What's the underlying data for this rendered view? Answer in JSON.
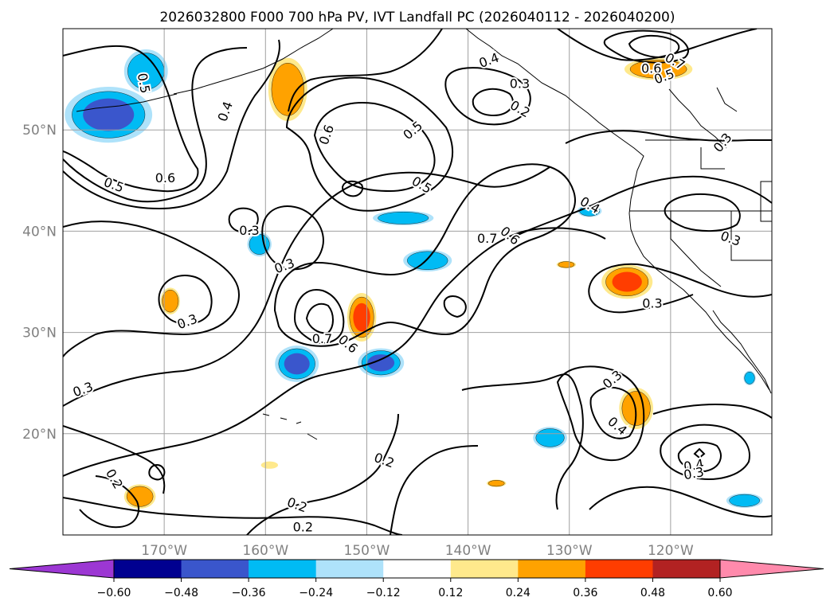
{
  "chart_data": {
    "type": "contour-map",
    "title": "2026032800 F000 700 hPa PV, IVT Landfall PC (2026040112 - 2026040200)",
    "lon_range": [
      -180,
      -110
    ],
    "lat_range": [
      10,
      60
    ],
    "lon_ticks": [
      {
        "value": -170,
        "label": "170°W"
      },
      {
        "value": -160,
        "label": "160°W"
      },
      {
        "value": -150,
        "label": "150°W"
      },
      {
        "value": -140,
        "label": "140°W"
      },
      {
        "value": -130,
        "label": "130°W"
      },
      {
        "value": -120,
        "label": "120°W"
      }
    ],
    "lat_ticks": [
      {
        "value": 20,
        "label": "20°N"
      },
      {
        "value": 30,
        "label": "30°N"
      },
      {
        "value": 40,
        "label": "40°N"
      },
      {
        "value": 50,
        "label": "50°N"
      }
    ],
    "grid": true,
    "contour_labels": [
      {
        "text": "0.5",
        "lon": -172.1,
        "lat": 54.6,
        "rot": 80
      },
      {
        "text": "0.4",
        "lon": -163.9,
        "lat": 51.8,
        "rot": -70
      },
      {
        "text": "0.6",
        "lon": -169.9,
        "lat": 45.2,
        "rot": 0
      },
      {
        "text": "0.5",
        "lon": -175.0,
        "lat": 44.5,
        "rot": 20
      },
      {
        "text": "0.3",
        "lon": -161.6,
        "lat": 40.0,
        "rot": 0
      },
      {
        "text": "0.3",
        "lon": -158.1,
        "lat": 36.5,
        "rot": -20
      },
      {
        "text": "0.3",
        "lon": -167.7,
        "lat": 31.0,
        "rot": -20
      },
      {
        "text": "0.3",
        "lon": -178.0,
        "lat": 24.3,
        "rot": -20
      },
      {
        "text": "0.2",
        "lon": -175.0,
        "lat": 15.5,
        "rot": 60
      },
      {
        "text": "0.6",
        "lon": -153.9,
        "lat": 49.5,
        "rot": -70
      },
      {
        "text": "0.5",
        "lon": -145.4,
        "lat": 49.9,
        "rot": -40
      },
      {
        "text": "0.5",
        "lon": -144.6,
        "lat": 44.5,
        "rot": 30
      },
      {
        "text": "0.7",
        "lon": -138.1,
        "lat": 39.2,
        "rot": 0
      },
      {
        "text": "0.6",
        "lon": -135.9,
        "lat": 39.5,
        "rot": 40
      },
      {
        "text": "0.7",
        "lon": -154.4,
        "lat": 29.3,
        "rot": 0
      },
      {
        "text": "0.6",
        "lon": -151.9,
        "lat": 28.8,
        "rot": 40
      },
      {
        "text": "0.4",
        "lon": -137.9,
        "lat": 56.8,
        "rot": -20
      },
      {
        "text": "0.3",
        "lon": -134.9,
        "lat": 54.5,
        "rot": 0
      },
      {
        "text": "0.2",
        "lon": -134.9,
        "lat": 52.0,
        "rot": 30
      },
      {
        "text": "0.6",
        "lon": -121.9,
        "lat": 56.0,
        "rot": 0
      },
      {
        "text": "0.7",
        "lon": -119.6,
        "lat": 56.7,
        "rot": 30
      },
      {
        "text": "0.5",
        "lon": -120.6,
        "lat": 55.2,
        "rot": -20
      },
      {
        "text": "0.3",
        "lon": -114.8,
        "lat": 48.7,
        "rot": -50
      },
      {
        "text": "0.4",
        "lon": -128.0,
        "lat": 42.5,
        "rot": 30
      },
      {
        "text": "0.3",
        "lon": -114.1,
        "lat": 39.2,
        "rot": 20
      },
      {
        "text": "0.3",
        "lon": -121.8,
        "lat": 32.8,
        "rot": 0
      },
      {
        "text": "0.3",
        "lon": -125.7,
        "lat": 25.3,
        "rot": -40
      },
      {
        "text": "0.4",
        "lon": -125.3,
        "lat": 20.7,
        "rot": 40
      },
      {
        "text": "0.4",
        "lon": -117.7,
        "lat": 16.8,
        "rot": -10
      },
      {
        "text": "0.3",
        "lon": -117.7,
        "lat": 16.0,
        "rot": -10
      },
      {
        "text": "0.2",
        "lon": -148.3,
        "lat": 17.3,
        "rot": 20
      },
      {
        "text": "0.2",
        "lon": -156.9,
        "lat": 12.9,
        "rot": 20
      },
      {
        "text": "0.2",
        "lon": -156.3,
        "lat": 10.7,
        "rot": 0
      }
    ],
    "filled_blobs": [
      {
        "lon": -175.5,
        "lat": 51.5,
        "rx": 3.6,
        "ry": 2.3,
        "value": -0.42
      },
      {
        "lon": -171.8,
        "lat": 55.8,
        "rx": 1.8,
        "ry": 1.8,
        "value": -0.36
      },
      {
        "lon": -150.5,
        "lat": 31.5,
        "rx": 1.2,
        "ry": 2.0,
        "value": 0.36
      },
      {
        "lon": -156.9,
        "lat": 26.9,
        "rx": 1.8,
        "ry": 1.5,
        "value": -0.48
      },
      {
        "lon": -148.6,
        "lat": 27.0,
        "rx": 1.9,
        "ry": 1.2,
        "value": -0.42
      },
      {
        "lon": -160.6,
        "lat": 38.7,
        "rx": 1.0,
        "ry": 1.0,
        "value": -0.3
      },
      {
        "lon": -157.8,
        "lat": 54.0,
        "rx": 1.6,
        "ry": 2.6,
        "value": 0.3
      },
      {
        "lon": -124.3,
        "lat": 35.0,
        "rx": 2.1,
        "ry": 1.4,
        "value": 0.42
      },
      {
        "lon": -123.4,
        "lat": 22.5,
        "rx": 1.4,
        "ry": 1.7,
        "value": 0.3
      },
      {
        "lon": -131.9,
        "lat": 19.6,
        "rx": 1.4,
        "ry": 0.9,
        "value": -0.3
      },
      {
        "lon": -121.2,
        "lat": 56.0,
        "rx": 2.8,
        "ry": 0.9,
        "value": 0.3
      },
      {
        "lon": -146.4,
        "lat": 41.3,
        "rx": 2.5,
        "ry": 0.6,
        "value": -0.3
      },
      {
        "lon": -144.0,
        "lat": 37.1,
        "rx": 2.0,
        "ry": 0.9,
        "value": -0.3
      },
      {
        "lon": -169.4,
        "lat": 33.1,
        "rx": 0.8,
        "ry": 1.1,
        "value": 0.3
      },
      {
        "lon": -172.4,
        "lat": 13.8,
        "rx": 1.3,
        "ry": 1.0,
        "value": 0.3
      },
      {
        "lon": -112.7,
        "lat": 13.4,
        "rx": 1.5,
        "ry": 0.6,
        "value": -0.3
      },
      {
        "lon": -128.0,
        "lat": 42.0,
        "rx": 1.0,
        "ry": 0.5,
        "value": -0.3
      },
      {
        "lon": -112.2,
        "lat": 25.5,
        "rx": 0.5,
        "ry": 0.6,
        "value": -0.3
      },
      {
        "lon": -130.3,
        "lat": 36.7,
        "rx": 0.8,
        "ry": 0.3,
        "value": 0.3
      },
      {
        "lon": -137.2,
        "lat": 15.1,
        "rx": 0.8,
        "ry": 0.3,
        "value": 0.24
      },
      {
        "lon": -159.6,
        "lat": 16.9,
        "rx": 0.7,
        "ry": 0.3,
        "value": 0.2
      }
    ],
    "colorbar": {
      "colors": [
        "#9c37d3",
        "#000090",
        "#3a56cc",
        "#00bbf4",
        "#aee2fa",
        "#ffffff",
        "#ffe98c",
        "#ffa200",
        "#ff3d00",
        "#b22222",
        "#ff8aac"
      ],
      "tick_labels": [
        "−0.60",
        "−0.48",
        "−0.36",
        "−0.24",
        "−0.12",
        "0.12",
        "0.24",
        "0.36",
        "0.48",
        "0.60"
      ],
      "extend": "both"
    }
  }
}
